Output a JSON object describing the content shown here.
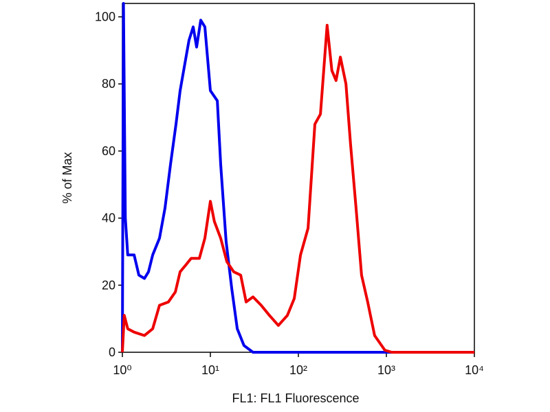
{
  "chart_data": {
    "type": "line",
    "x_label": "FL1: FL1 Fluorescence",
    "y_label": "% of Max",
    "xscale": "log",
    "xlim": [
      1,
      10000
    ],
    "xticks": [
      {
        "value": 1,
        "label": "10⁰"
      },
      {
        "value": 10,
        "label": "10¹"
      },
      {
        "value": 100,
        "label": "10²"
      },
      {
        "value": 1000,
        "label": "10³"
      },
      {
        "value": 10000,
        "label": "10⁴"
      }
    ],
    "ylim": [
      0,
      104
    ],
    "yticks": [
      0,
      20,
      40,
      60,
      80,
      100
    ],
    "series": [
      {
        "color": "#0000ee",
        "x": [
          1,
          1.03,
          1.08,
          1.15,
          1.36,
          1.54,
          1.78,
          1.98,
          2.21,
          2.64,
          3.05,
          3.52,
          4.07,
          4.53,
          5.05,
          5.72,
          6.38,
          6.98,
          7.78,
          8.66,
          10,
          12,
          13.1,
          15.1,
          17.5,
          20.2,
          24.1,
          30.5,
          10000
        ],
        "values": [
          0,
          104,
          40,
          29,
          29,
          23,
          22,
          24,
          29,
          34,
          43,
          56,
          68,
          78,
          85,
          93,
          97,
          91,
          99,
          97,
          78,
          75,
          56,
          33,
          19,
          7,
          2,
          0,
          0
        ]
      },
      {
        "color": "#ee0000",
        "x": [
          1,
          1.05,
          1.15,
          1.36,
          1.78,
          2.21,
          2.64,
          3.34,
          4.0,
          4.53,
          5.25,
          6.04,
          7.5,
          8.66,
          10,
          11.1,
          13.1,
          15.4,
          18.4,
          22.1,
          25.5,
          30.5,
          37.8,
          46.9,
          59.2,
          75,
          89.8,
          105.7,
          128.9,
          153.9,
          178,
          212,
          240,
          268,
          300,
          347,
          392,
          452,
          522,
          613,
          735,
          963,
          1150,
          10000
        ],
        "values": [
          0,
          11,
          7,
          6,
          5,
          7,
          14,
          15,
          18,
          24,
          26,
          28,
          28,
          34,
          45,
          39,
          34,
          27,
          24,
          23,
          15,
          16.5,
          14,
          11,
          8,
          11,
          16,
          29,
          37,
          68,
          71,
          97.5,
          84,
          81,
          88,
          80,
          62,
          43,
          23,
          15,
          5,
          0.6,
          0,
          0
        ]
      }
    ]
  }
}
